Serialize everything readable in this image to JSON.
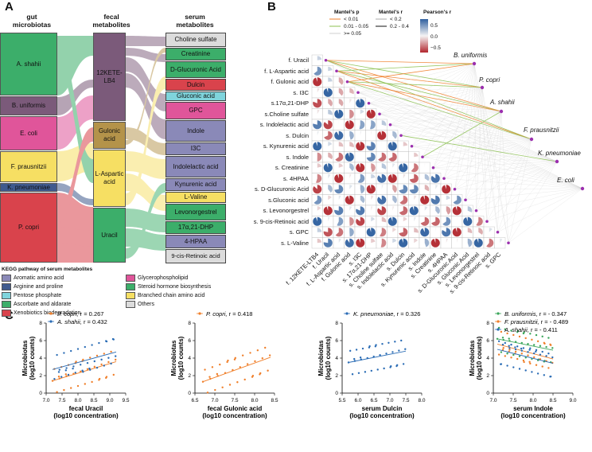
{
  "panels": {
    "a": "A",
    "b": "B",
    "c": "C"
  },
  "panelA": {
    "headers": {
      "gut": "gut\nmicrobiotas",
      "fecal": "fecal\nmetabolites",
      "serum": "serum\nmetabolites"
    },
    "gut": [
      "A. shahii",
      "B. uniformis",
      "E. coli",
      "F. prausnitzii",
      "K. pneumoniae",
      "P. copri"
    ],
    "fecal": [
      "12KETE-LB4",
      "Gulonic acid",
      "L-Aspartic acid",
      "Uracil"
    ],
    "serum": [
      "Choline sulfate",
      "Creatinine",
      "D-Glucuronic Acid",
      "Dulcin",
      "Gluconic acid",
      "GPC",
      "Indole",
      "I3C",
      "Indolelactic acid",
      "Kynurenic acid",
      "L-Valine",
      "Levonorgestrel",
      "17α,21-DHP",
      "4-HPAA",
      "9-cis-Retinoic acid"
    ],
    "kegg_title": "KEGG pathway of serum metabolites",
    "kegg": [
      "Aromatic amino acid",
      "Arginine and proline",
      "Pentose phosphate",
      "Ascorbate and aldarate",
      "Xenobiotics biodegradation",
      "Glycerophospholipid",
      "Steroid hormone biosynthesis",
      "Branched chain amino acid",
      "Others"
    ],
    "colors": {
      "green": "#3cae6a",
      "purple": "#7b5a7a",
      "pink": "#e0559a",
      "yellow": "#f6df63",
      "navy": "#3f5a8e",
      "red": "#d9434c",
      "brown": "#b4934a",
      "slate": "#8a89b8",
      "cyan": "#7fd4dc",
      "grey": "#dcdcdc",
      "lightblue": "#9eb8e6"
    }
  },
  "panelB": {
    "legend": {
      "mp_title": "Mantel's p",
      "mp": [
        "< 0.01",
        "0.01 - 0.05",
        ">= 0.05"
      ],
      "mr_title": "Mantel's r",
      "mr": [
        "< 0.2",
        "0.2 - 0.4"
      ],
      "pr_title": "Pearson's r",
      "pr_ticks": [
        "0.5",
        "0.0",
        "−0.5"
      ]
    },
    "rows": [
      "f. Uracil",
      "f. L-Aspartic acid",
      "f. Gulonic acid",
      "s. I3C",
      "s.17α,21-DHP",
      "s.Choline sulfate",
      "s. Indolelactic acid",
      "s. Dulcin",
      "s. Kynurenic acid",
      "s. Indole",
      "s. Creatinine",
      "s. 4HPAA",
      "s. D-Glucuronic Acid",
      "s.Gluconic acid",
      "s. Levonorgestrel",
      "s. 9-cis-Retinoic acid",
      "s. GPC",
      "s. L-Valine"
    ],
    "cols": [
      "f. 12KETE-LTB4",
      "f. Uracil",
      "f. L-Aspartic acid",
      "f. Gulonic acid",
      "s. I3C",
      "s. 17α,21-DHP",
      "s. Choline sulfate",
      "s. Indolelactic acid",
      "s. Dulcin",
      "s. Kynurenic acid",
      "s. Indole",
      "s. Creatinine",
      "s. 4HPAA",
      "s. D-Glucuronic Acid",
      "s. Gluconic Acid",
      "s. Levonorgestrel",
      "s. 9-cis-Retinoic acid",
      "s. GPC"
    ],
    "taxa": [
      "B. uniformis",
      "P. copri",
      "A. shahii",
      "F. prausnitzii",
      "K. pneumoniae",
      "E. coli"
    ]
  },
  "chart_data": [
    {
      "type": "scatter",
      "xlabel": "fecal Uracil\n(log10 concentration)",
      "ylabel": "Microbiotas\n(log10 counts)",
      "xlim": [
        7.0,
        9.5
      ],
      "ylim": [
        0,
        8
      ],
      "xticks": [
        "7.0",
        "7.5",
        "8.0",
        "8.5",
        "9.0",
        "9.5"
      ],
      "yticks": [
        "0",
        "2",
        "4",
        "6",
        "8"
      ],
      "series": [
        {
          "name": "P. copri",
          "r": "r = 0.267",
          "color": "#f07f2a",
          "line": [
            [
              7.2,
              1.4
            ],
            [
              9.2,
              3.6
            ]
          ]
        },
        {
          "name": "A. shahii",
          "r": "r = 0.432",
          "color": "#2a6cb5",
          "line": [
            [
              7.2,
              2.7
            ],
            [
              9.2,
              4.7
            ]
          ]
        }
      ]
    },
    {
      "type": "scatter",
      "xlabel": "fecal Gulonic acid\n(log10 concentration)",
      "ylabel": "Microbiotas\n(log10 counts)",
      "xlim": [
        6.5,
        8.5
      ],
      "ylim": [
        0,
        8
      ],
      "xticks": [
        "6.5",
        "7.0",
        "7.5",
        "8.0",
        "8.5"
      ],
      "yticks": [
        "0",
        "2",
        "4",
        "6",
        "8"
      ],
      "series": [
        {
          "name": "P. copri",
          "r": "r = 0.418",
          "color": "#f07f2a",
          "line": [
            [
              6.7,
              1.3
            ],
            [
              8.4,
              4.1
            ]
          ]
        }
      ]
    },
    {
      "type": "scatter",
      "xlabel": "serum Dulcin\n(log10 concentration)",
      "ylabel": "Microbiotas\n(log10 counts)",
      "xlim": [
        5.5,
        8.0
      ],
      "ylim": [
        0,
        8
      ],
      "xticks": [
        "5.5",
        "6.0",
        "6.5",
        "7.0",
        "7.5",
        "8.0"
      ],
      "yticks": [
        "0",
        "2",
        "4",
        "6",
        "8"
      ],
      "series": [
        {
          "name": "K. pneumoniae",
          "r": "r = 0.326",
          "color": "#2a6cb5",
          "line": [
            [
              5.7,
              3.5
            ],
            [
              7.5,
              4.8
            ]
          ]
        }
      ]
    },
    {
      "type": "scatter",
      "xlabel": "serum Indole\n(log10 concentration)",
      "ylabel": "Microbiotas\n(log10 counts)",
      "xlim": [
        7.0,
        9.0
      ],
      "ylim": [
        0,
        8
      ],
      "xticks": [
        "7.0",
        "7.5",
        "8.0",
        "8.5",
        "9.0"
      ],
      "yticks": [
        "0",
        "2",
        "4",
        "6",
        "8"
      ],
      "series": [
        {
          "name": "B. uniformis",
          "r": "r = - 0.347",
          "color": "#3aa55a",
          "line": [
            [
              7.1,
              6.2
            ],
            [
              8.5,
              4.9
            ]
          ]
        },
        {
          "name": "F. prausnitzii",
          "r": "r = - 0.489",
          "color": "#f07f2a",
          "line": [
            [
              7.1,
              5.6
            ],
            [
              8.5,
              3.9
            ]
          ]
        },
        {
          "name": "A. shahii",
          "r": "r = - 0.411",
          "color": "#2a6cb5",
          "line": [
            [
              7.1,
              5.0
            ],
            [
              8.5,
              3.4
            ]
          ]
        }
      ]
    }
  ]
}
